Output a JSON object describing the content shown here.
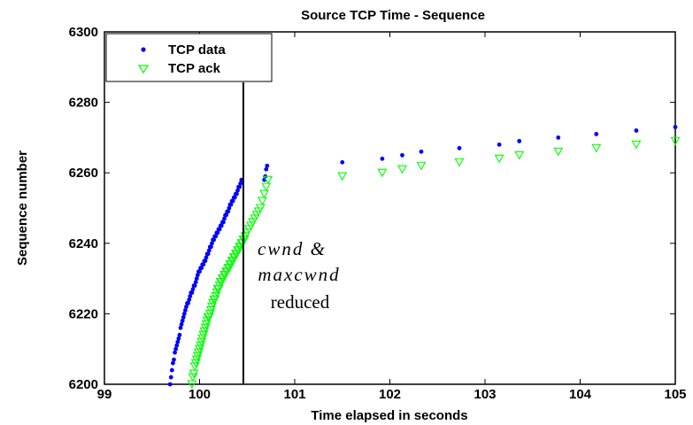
{
  "chart_data": {
    "type": "scatter",
    "title": "Source TCP Time - Sequence",
    "xlabel": "Time elapsed in seconds",
    "ylabel": "Sequence number",
    "xlim": [
      99,
      105
    ],
    "ylim": [
      6200,
      6300
    ],
    "xticks": [
      "99",
      "100",
      "101",
      "102",
      "103",
      "104",
      "105"
    ],
    "yticks": [
      "6200",
      "6220",
      "6240",
      "6260",
      "6280",
      "6300"
    ],
    "legend_position": "top-left",
    "grid": false,
    "series": [
      {
        "name": "TCP data",
        "marker": "dot",
        "color": "#0000ff",
        "x": [
          99.69,
          99.7,
          99.71,
          99.72,
          99.73,
          99.74,
          99.75,
          99.76,
          99.77,
          99.78,
          99.79,
          99.8,
          99.81,
          99.82,
          99.83,
          99.84,
          99.85,
          99.86,
          99.87,
          99.88,
          99.89,
          99.9,
          99.91,
          99.92,
          99.93,
          99.94,
          99.95,
          99.96,
          99.97,
          99.98,
          99.99,
          100.0,
          100.01,
          100.02,
          100.03,
          100.04,
          100.05,
          100.06,
          100.07,
          100.08,
          100.09,
          100.1,
          100.11,
          100.12,
          100.13,
          100.14,
          100.15,
          100.16,
          100.17,
          100.18,
          100.19,
          100.2,
          100.21,
          100.22,
          100.23,
          100.24,
          100.25,
          100.26,
          100.27,
          100.28,
          100.29,
          100.3,
          100.31,
          100.32,
          100.33,
          100.34,
          100.35,
          100.36,
          100.37,
          100.38,
          100.39,
          100.4,
          100.41,
          100.42,
          100.43,
          100.44,
          100.68,
          100.69,
          100.7,
          100.71,
          101.5,
          101.92,
          102.13,
          102.33,
          102.73,
          103.15,
          103.36,
          103.77,
          104.17,
          104.59,
          105.0
        ],
        "y": [
          6200,
          6202,
          6204,
          6206,
          6207,
          6209,
          6210,
          6211,
          6212,
          6213,
          6214,
          6216,
          6217,
          6218,
          6219,
          6220,
          6221,
          6222,
          6223,
          6223,
          6224,
          6225,
          6226,
          6226,
          6227,
          6228,
          6228,
          6229,
          6230,
          6231,
          6232,
          6232,
          6233,
          6233,
          6234,
          6234,
          6235,
          6235,
          6236,
          6237,
          6237,
          6238,
          6239,
          6239,
          6240,
          6241,
          6241,
          6242,
          6242,
          6243,
          6243,
          6244,
          6244,
          6245,
          6245,
          6246,
          6246,
          6247,
          6248,
          6248,
          6249,
          6249,
          6250,
          6251,
          6251,
          6252,
          6252,
          6253,
          6253,
          6254,
          6254,
          6255,
          6256,
          6256,
          6257,
          6258,
          6258,
          6259,
          6261,
          6262,
          6263,
          6264,
          6265,
          6266,
          6267,
          6268,
          6269,
          6270,
          6271,
          6272,
          6273
        ]
      },
      {
        "name": "TCP ack",
        "marker": "triangle-down",
        "color": "#00ff00",
        "x": [
          99.92,
          99.93,
          99.94,
          99.95,
          99.96,
          99.97,
          99.98,
          99.99,
          100.0,
          100.01,
          100.02,
          100.03,
          100.04,
          100.05,
          100.06,
          100.07,
          100.08,
          100.09,
          100.1,
          100.11,
          100.12,
          100.13,
          100.14,
          100.15,
          100.16,
          100.17,
          100.18,
          100.19,
          100.2,
          100.21,
          100.22,
          100.23,
          100.24,
          100.25,
          100.26,
          100.27,
          100.28,
          100.29,
          100.3,
          100.31,
          100.32,
          100.33,
          100.34,
          100.35,
          100.36,
          100.37,
          100.38,
          100.39,
          100.4,
          100.41,
          100.42,
          100.43,
          100.44,
          100.45,
          100.46,
          100.47,
          100.48,
          100.5,
          100.52,
          100.54,
          100.56,
          100.58,
          100.6,
          100.62,
          100.64,
          100.66,
          100.68,
          100.7,
          100.72,
          101.5,
          101.92,
          102.13,
          102.33,
          102.73,
          103.15,
          103.36,
          103.77,
          104.17,
          104.59,
          105.0
        ],
        "y": [
          6200,
          6202,
          6203,
          6205,
          6206,
          6207,
          6208,
          6209,
          6210,
          6211,
          6212,
          6213,
          6214,
          6215,
          6216,
          6217,
          6218,
          6219,
          6219,
          6220,
          6221,
          6222,
          6223,
          6224,
          6224,
          6225,
          6226,
          6227,
          6227,
          6228,
          6229,
          6229,
          6230,
          6230,
          6231,
          6231,
          6232,
          6232,
          6233,
          6233,
          6234,
          6234,
          6235,
          6235,
          6236,
          6236,
          6237,
          6237,
          6238,
          6238,
          6239,
          6239,
          6240,
          6240,
          6241,
          6241,
          6242,
          6243,
          6244,
          6245,
          6246,
          6247,
          6248,
          6249,
          6250,
          6252,
          6254,
          6256,
          6258,
          6259,
          6260,
          6261,
          6262,
          6263,
          6264,
          6265,
          6266,
          6267,
          6268,
          6269
        ]
      }
    ],
    "vline": {
      "x": 100.46
    },
    "annotation": {
      "line1": "cwnd &",
      "line2": "maxcwnd",
      "line3": "reduced"
    }
  }
}
